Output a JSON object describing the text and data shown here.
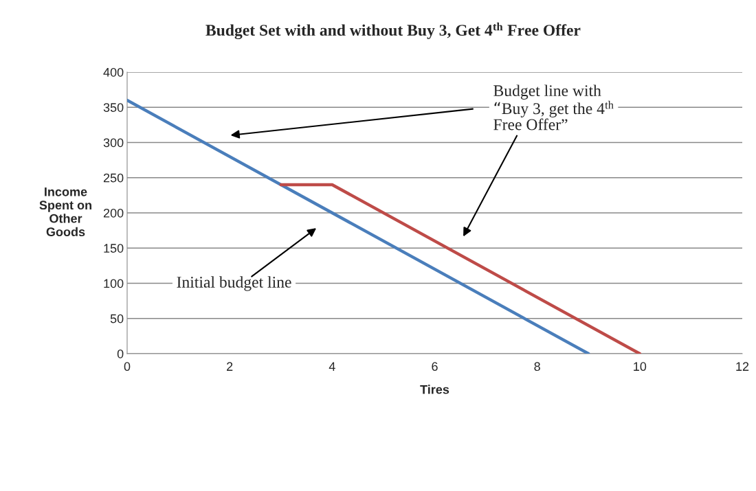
{
  "chart_data": {
    "type": "line",
    "title": "Budget Set with and without Buy 3, Get 4$^{th}$ Free Offer",
    "xlabel": "Tires",
    "ylabel": "Income\nSpent on\nOther\nGoods",
    "series": [
      {
        "color": "#4a7ebb",
        "x": [
          0,
          9
        ],
        "values": [
          360,
          0
        ]
      },
      {
        "color": "#be4b48",
        "x": [
          3,
          4,
          10
        ],
        "values": [
          240,
          240,
          0
        ]
      }
    ],
    "xlim": [
      0,
      12
    ],
    "xticks": [
      0,
      2,
      4,
      6,
      8,
      10,
      12
    ],
    "ylim": [
      0,
      400
    ],
    "yticks": [
      0,
      50,
      100,
      150,
      200,
      250,
      300,
      350,
      400
    ],
    "grid": "y",
    "legend": false,
    "marker": "none",
    "line_style": "solid",
    "annotations": [
      "Budget line with\n“Buy 3, get the 4$^{th}$\nFree Offer”",
      "Initial budget line"
    ]
  }
}
